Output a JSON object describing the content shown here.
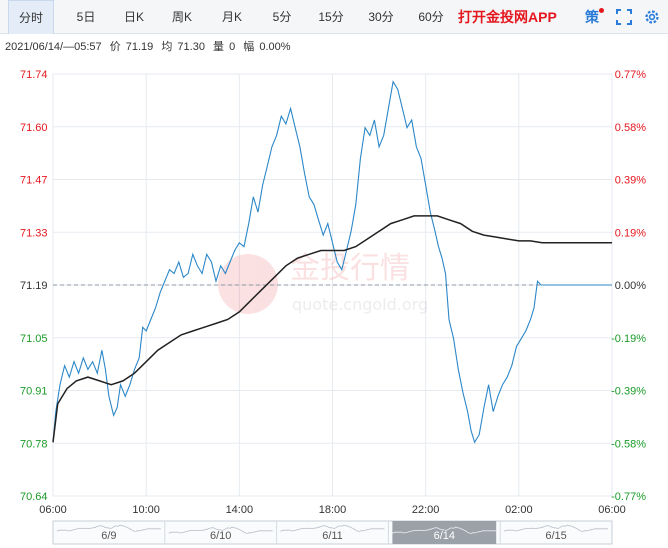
{
  "tabs": [
    {
      "label": "分时",
      "active": true
    },
    {
      "label": "5日",
      "active": false
    },
    {
      "label": "日K",
      "active": false
    },
    {
      "label": "周K",
      "active": false
    },
    {
      "label": "月K",
      "active": false
    },
    {
      "label": "5分",
      "active": false
    },
    {
      "label": "15分",
      "active": false
    },
    {
      "label": "30分",
      "active": false
    },
    {
      "label": "60分",
      "active": false
    }
  ],
  "app_link": "打开金投网APP",
  "toolbar": {
    "ce_label": "策",
    "expand_icon": "expand-icon",
    "settings_icon": "gear-icon"
  },
  "info": {
    "datetime": "2021/06/14/—05:57",
    "price_label": "价",
    "price": "71.19",
    "avg_label": "均",
    "avg": "71.30",
    "volume_label": "量",
    "volume": "0",
    "change_label": "幅",
    "change": "0.00%"
  },
  "watermark": {
    "brand": "金投行情",
    "url": "quote.cngold.org"
  },
  "colors": {
    "price_line": "#2b87c8",
    "avg_line": "#222222",
    "up": "#e5171e",
    "down": "#1a9a28"
  },
  "chart_data": {
    "type": "line",
    "reference_price": 71.19,
    "ylim": [
      70.64,
      71.74
    ],
    "y_ticks": [
      "71.74",
      "71.60",
      "71.47",
      "71.33",
      "71.19",
      "71.05",
      "70.91",
      "70.78",
      "70.64"
    ],
    "pct_ticks": [
      "0.77%",
      "0.58%",
      "0.39%",
      "0.19%",
      "0.00%",
      "-0.19%",
      "-0.39%",
      "-0.58%",
      "-0.77%"
    ],
    "x_ticks": [
      "06:00",
      "10:00",
      "14:00",
      "18:00",
      "22:00",
      "02:00",
      "06:00"
    ],
    "x_range_hours": [
      0,
      24
    ],
    "series": [
      {
        "values": [
          [
            0.0,
            70.78
          ],
          [
            0.12,
            70.86
          ],
          [
            0.3,
            70.93
          ],
          [
            0.5,
            70.98
          ],
          [
            0.7,
            70.95
          ],
          [
            0.9,
            70.99
          ],
          [
            1.1,
            70.96
          ],
          [
            1.3,
            71.0
          ],
          [
            1.5,
            70.97
          ],
          [
            1.7,
            70.99
          ],
          [
            1.9,
            70.96
          ],
          [
            2.1,
            71.02
          ],
          [
            2.25,
            70.97
          ],
          [
            2.4,
            70.9
          ],
          [
            2.6,
            70.85
          ],
          [
            2.75,
            70.87
          ],
          [
            2.9,
            70.93
          ],
          [
            3.1,
            70.9
          ],
          [
            3.3,
            70.93
          ],
          [
            3.5,
            70.97
          ],
          [
            3.7,
            71.0
          ],
          [
            3.85,
            71.08
          ],
          [
            4.0,
            71.07
          ],
          [
            4.2,
            71.1
          ],
          [
            4.4,
            71.13
          ],
          [
            4.6,
            71.17
          ],
          [
            4.8,
            71.2
          ],
          [
            5.0,
            71.23
          ],
          [
            5.2,
            71.22
          ],
          [
            5.4,
            71.25
          ],
          [
            5.6,
            71.21
          ],
          [
            5.8,
            71.22
          ],
          [
            6.0,
            71.27
          ],
          [
            6.2,
            71.24
          ],
          [
            6.4,
            71.22
          ],
          [
            6.6,
            71.27
          ],
          [
            6.8,
            71.25
          ],
          [
            7.0,
            71.2
          ],
          [
            7.2,
            71.24
          ],
          [
            7.4,
            71.22
          ],
          [
            7.6,
            71.25
          ],
          [
            7.8,
            71.28
          ],
          [
            8.0,
            71.3
          ],
          [
            8.2,
            71.29
          ],
          [
            8.4,
            71.35
          ],
          [
            8.6,
            71.42
          ],
          [
            8.8,
            71.38
          ],
          [
            9.0,
            71.45
          ],
          [
            9.2,
            71.5
          ],
          [
            9.4,
            71.55
          ],
          [
            9.6,
            71.58
          ],
          [
            9.8,
            71.63
          ],
          [
            10.0,
            71.61
          ],
          [
            10.2,
            71.65
          ],
          [
            10.4,
            71.6
          ],
          [
            10.6,
            71.55
          ],
          [
            10.8,
            71.48
          ],
          [
            11.0,
            71.42
          ],
          [
            11.2,
            71.4
          ],
          [
            11.4,
            71.36
          ],
          [
            11.6,
            71.32
          ],
          [
            11.8,
            71.35
          ],
          [
            12.0,
            71.3
          ],
          [
            12.2,
            71.25
          ],
          [
            12.4,
            71.23
          ],
          [
            12.6,
            71.28
          ],
          [
            12.8,
            71.33
          ],
          [
            13.0,
            71.4
          ],
          [
            13.2,
            71.52
          ],
          [
            13.4,
            71.6
          ],
          [
            13.6,
            71.58
          ],
          [
            13.8,
            71.62
          ],
          [
            14.0,
            71.55
          ],
          [
            14.2,
            71.58
          ],
          [
            14.4,
            71.65
          ],
          [
            14.6,
            71.72
          ],
          [
            14.8,
            71.7
          ],
          [
            15.0,
            71.65
          ],
          [
            15.2,
            71.6
          ],
          [
            15.4,
            71.62
          ],
          [
            15.6,
            71.55
          ],
          [
            15.8,
            71.52
          ],
          [
            16.0,
            71.45
          ],
          [
            16.2,
            71.38
          ],
          [
            16.4,
            71.33
          ],
          [
            16.55,
            71.29
          ],
          [
            16.7,
            71.26
          ],
          [
            16.85,
            71.22
          ],
          [
            17.0,
            71.1
          ],
          [
            17.2,
            71.05
          ],
          [
            17.4,
            70.97
          ],
          [
            17.6,
            70.91
          ],
          [
            17.8,
            70.86
          ],
          [
            17.95,
            70.81
          ],
          [
            18.1,
            70.78
          ],
          [
            18.3,
            70.8
          ],
          [
            18.5,
            70.87
          ],
          [
            18.7,
            70.93
          ],
          [
            18.9,
            70.86
          ],
          [
            19.1,
            70.9
          ],
          [
            19.3,
            70.93
          ],
          [
            19.5,
            70.95
          ],
          [
            19.7,
            70.98
          ],
          [
            19.9,
            71.03
          ],
          [
            20.1,
            71.05
          ],
          [
            20.3,
            71.07
          ],
          [
            20.5,
            71.1
          ],
          [
            20.65,
            71.13
          ],
          [
            20.8,
            71.2
          ],
          [
            20.95,
            71.19
          ],
          [
            21.1,
            71.19
          ],
          [
            22.0,
            71.19
          ],
          [
            24.0,
            71.19
          ]
        ]
      },
      {
        "values": [
          [
            0.0,
            70.78
          ],
          [
            0.2,
            70.88
          ],
          [
            0.6,
            70.92
          ],
          [
            1.0,
            70.94
          ],
          [
            1.5,
            70.95
          ],
          [
            2.0,
            70.94
          ],
          [
            2.5,
            70.93
          ],
          [
            3.0,
            70.94
          ],
          [
            3.5,
            70.96
          ],
          [
            4.0,
            70.99
          ],
          [
            4.5,
            71.02
          ],
          [
            5.0,
            71.04
          ],
          [
            5.5,
            71.06
          ],
          [
            6.0,
            71.07
          ],
          [
            6.5,
            71.08
          ],
          [
            7.0,
            71.09
          ],
          [
            7.5,
            71.1
          ],
          [
            8.0,
            71.12
          ],
          [
            8.5,
            71.15
          ],
          [
            9.0,
            71.18
          ],
          [
            9.5,
            71.21
          ],
          [
            10.0,
            71.24
          ],
          [
            10.5,
            71.26
          ],
          [
            11.0,
            71.27
          ],
          [
            11.5,
            71.28
          ],
          [
            12.0,
            71.28
          ],
          [
            12.5,
            71.28
          ],
          [
            13.0,
            71.29
          ],
          [
            13.5,
            71.31
          ],
          [
            14.0,
            71.33
          ],
          [
            14.5,
            71.35
          ],
          [
            15.0,
            71.36
          ],
          [
            15.5,
            71.37
          ],
          [
            16.0,
            71.37
          ],
          [
            16.5,
            71.37
          ],
          [
            17.0,
            71.36
          ],
          [
            17.5,
            71.35
          ],
          [
            18.0,
            71.33
          ],
          [
            18.5,
            71.32
          ],
          [
            19.0,
            71.315
          ],
          [
            19.5,
            71.31
          ],
          [
            20.0,
            71.305
          ],
          [
            20.5,
            71.305
          ],
          [
            21.0,
            71.3
          ],
          [
            22.0,
            71.3
          ],
          [
            24.0,
            71.3
          ]
        ]
      }
    ],
    "navigator": {
      "labels": [
        "6/9",
        "6/10",
        "6/11",
        "6/14",
        "6/15"
      ],
      "selected": "6/14"
    }
  }
}
